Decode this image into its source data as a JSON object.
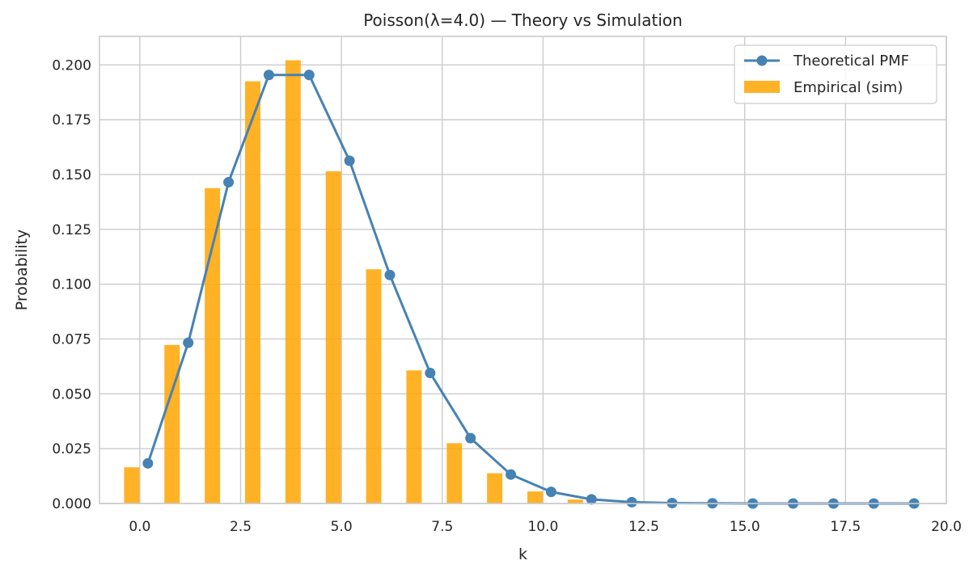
{
  "chart_data": {
    "type": "bar+line",
    "title": "Poisson(λ=4.0) — Theory vs Simulation",
    "xlabel": "k",
    "ylabel": "Probability",
    "xlim": [
      -1.0,
      20.0
    ],
    "ylim": [
      0.0,
      0.213
    ],
    "x_ticks": [
      0.0,
      2.5,
      5.0,
      7.5,
      10.0,
      12.5,
      15.0,
      17.5,
      20.0
    ],
    "x_tick_labels": [
      "0.0",
      "2.5",
      "5.0",
      "7.5",
      "10.0",
      "12.5",
      "15.0",
      "17.5",
      "20.0"
    ],
    "y_ticks": [
      0.0,
      0.025,
      0.05,
      0.075,
      0.1,
      0.125,
      0.15,
      0.175,
      0.2
    ],
    "y_tick_labels": [
      "0.000",
      "0.025",
      "0.050",
      "0.075",
      "0.100",
      "0.125",
      "0.150",
      "0.175",
      "0.200"
    ],
    "grid": true,
    "legend_position": "top-right",
    "legend": [
      "Theoretical PMF",
      "Empirical (sim)"
    ],
    "series": [
      {
        "name": "Theoretical PMF",
        "kind": "line",
        "color": "#4682b4",
        "marker": "circle",
        "x": [
          0.2,
          1.2,
          2.2,
          3.2,
          4.2,
          5.2,
          6.2,
          7.2,
          8.2,
          9.2,
          10.2,
          11.2,
          12.2,
          13.2,
          14.2,
          15.2,
          16.2,
          17.2,
          18.2,
          19.2
        ],
        "values": [
          0.0183,
          0.0733,
          0.1465,
          0.1954,
          0.1954,
          0.1563,
          0.1042,
          0.0595,
          0.0298,
          0.0132,
          0.0053,
          0.0019,
          0.0006,
          0.0002,
          0.0001,
          0.0,
          0.0,
          0.0,
          0.0,
          0.0
        ]
      },
      {
        "name": "Empirical (sim)",
        "kind": "bar",
        "color": "#ffa500",
        "bar_width": 0.38,
        "x": [
          -0.2,
          0.8,
          1.8,
          2.8,
          3.8,
          4.8,
          5.8,
          6.8,
          7.8,
          8.8,
          9.8,
          10.8
        ],
        "values": [
          0.0165,
          0.0723,
          0.1438,
          0.1925,
          0.2021,
          0.1515,
          0.1068,
          0.0607,
          0.0275,
          0.0138,
          0.0055,
          0.0018
        ]
      }
    ]
  }
}
